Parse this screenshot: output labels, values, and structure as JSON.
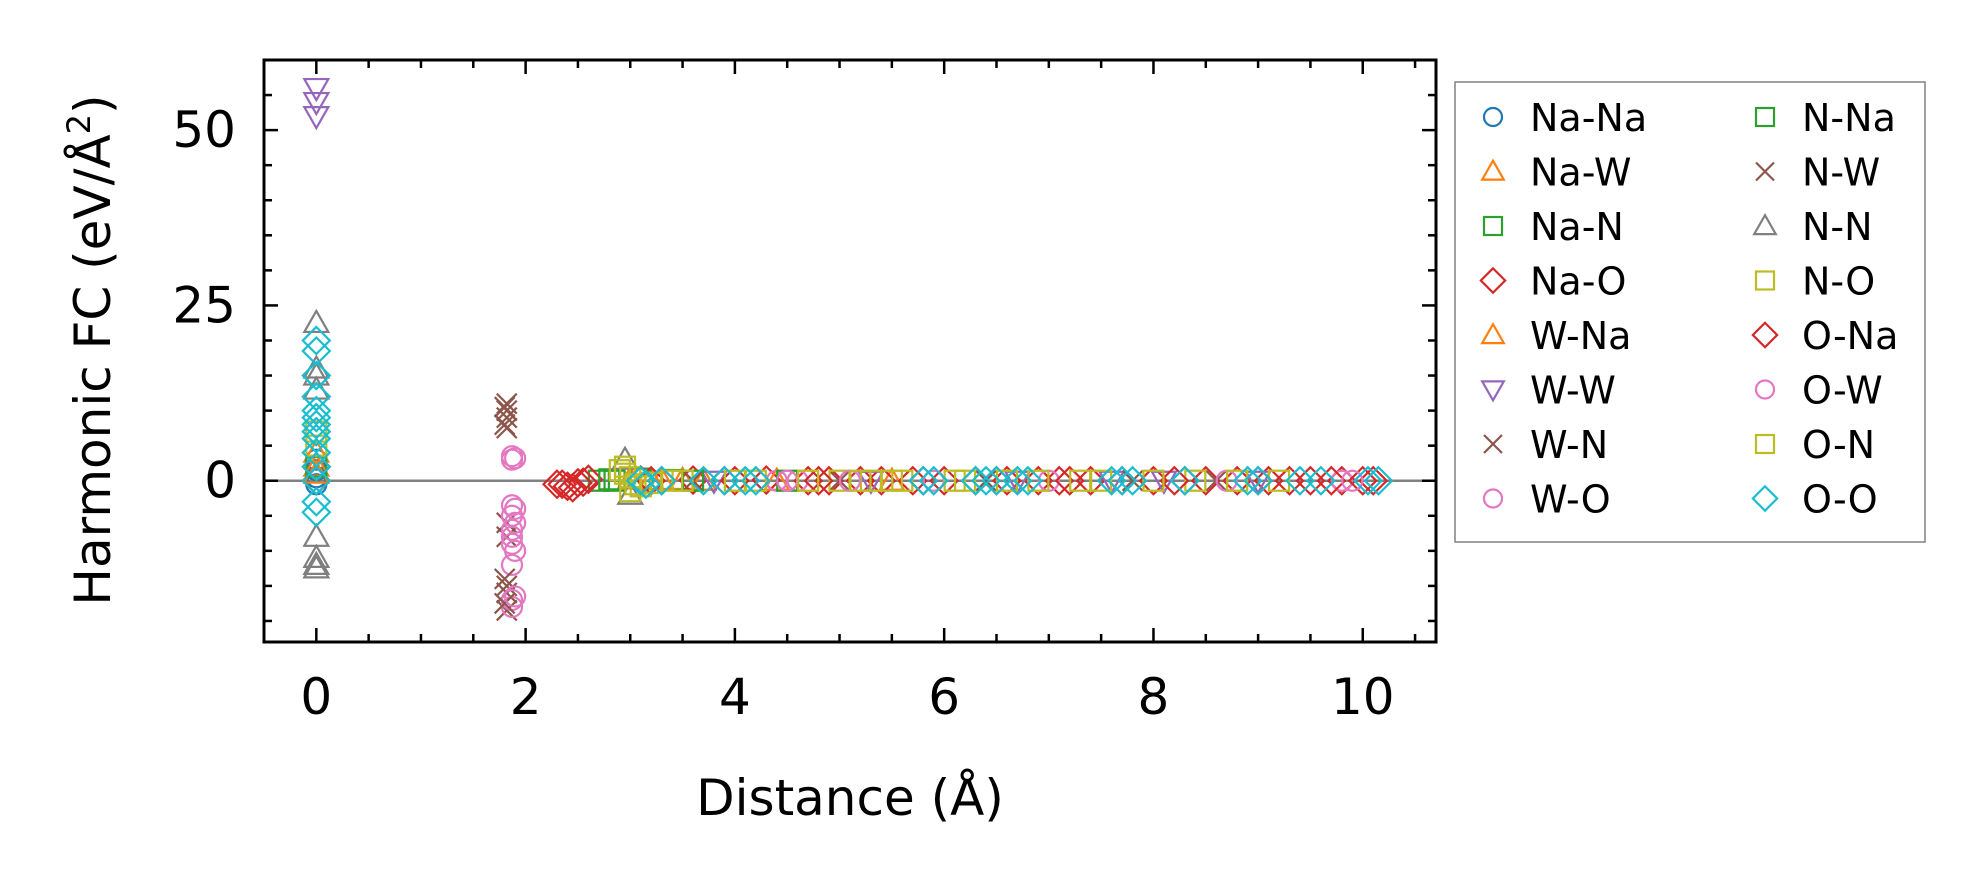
{
  "chart_data": {
    "type": "scatter",
    "title": "",
    "xlabel": "Distance (Å)",
    "ylabel_main": "Harmonic FC (eV/Å",
    "ylabel_sup": "2",
    "ylabel_close": ")",
    "xlim": [
      -0.5,
      10.7
    ],
    "ylim": [
      -23,
      60
    ],
    "x_ticks": [
      0,
      2,
      4,
      6,
      8,
      10
    ],
    "x_tick_labels": [
      "0",
      "2",
      "4",
      "6",
      "8",
      "10"
    ],
    "y_ticks": [
      0,
      25,
      50
    ],
    "y_tick_labels": [
      "0",
      "25",
      "50"
    ],
    "zero_line": 0,
    "legend_position": "right, outside the axes, two columns",
    "series": [
      {
        "name": "Na-Na",
        "color": "#1f77b4",
        "marker": "circle",
        "points": [
          [
            0,
            0.5
          ],
          [
            0,
            1.5
          ],
          [
            0,
            3
          ],
          [
            0,
            -0.5
          ]
        ]
      },
      {
        "name": "Na-W",
        "color": "#ff7f0e",
        "marker": "triangle-up",
        "points": [
          [
            0,
            1
          ],
          [
            0,
            2
          ],
          [
            0,
            4
          ],
          [
            3.2,
            0.1
          ],
          [
            3.5,
            0.1
          ],
          [
            5.5,
            0
          ]
        ]
      },
      {
        "name": "Na-N",
        "color": "#2ca02c",
        "marker": "square",
        "points": [
          [
            0,
            2
          ],
          [
            2.7,
            0
          ],
          [
            2.85,
            0
          ],
          [
            3.1,
            0.3
          ],
          [
            3.4,
            0.1
          ]
        ]
      },
      {
        "name": "Na-O",
        "color": "#d62728",
        "marker": "diamond",
        "points": [
          [
            0,
            0
          ],
          [
            0,
            2
          ],
          [
            2.3,
            -0.5
          ],
          [
            2.4,
            -0.8
          ],
          [
            2.5,
            -0.3
          ],
          [
            2.6,
            0.2
          ],
          [
            3.1,
            0.1
          ],
          [
            3.3,
            0
          ],
          [
            3.6,
            0.1
          ],
          [
            3.9,
            0
          ],
          [
            4.3,
            0.1
          ],
          [
            4.7,
            0
          ],
          [
            4.9,
            0
          ],
          [
            5.2,
            0
          ],
          [
            5.4,
            0
          ],
          [
            5.7,
            0
          ],
          [
            6.0,
            0
          ],
          [
            6.3,
            0
          ],
          [
            6.6,
            0
          ],
          [
            6.9,
            0
          ],
          [
            7.1,
            0
          ],
          [
            7.4,
            0
          ],
          [
            7.7,
            0
          ],
          [
            8.0,
            0
          ],
          [
            8.3,
            0
          ],
          [
            8.5,
            0
          ],
          [
            8.8,
            0
          ],
          [
            9.1,
            0
          ],
          [
            9.3,
            0
          ],
          [
            9.5,
            0
          ],
          [
            9.8,
            0
          ],
          [
            10.1,
            0
          ]
        ]
      },
      {
        "name": "W-Na",
        "color": "#ff7f0e",
        "marker": "triangle-up",
        "points": [
          [
            3.0,
            0.2
          ],
          [
            3.3,
            0.1
          ],
          [
            3.7,
            0
          ],
          [
            4.4,
            0
          ]
        ]
      },
      {
        "name": "W-W",
        "color": "#9467bd",
        "marker": "triangle-down",
        "points": [
          [
            0,
            56
          ],
          [
            0,
            54
          ],
          [
            0,
            52
          ],
          [
            3.8,
            0
          ],
          [
            5.3,
            0
          ],
          [
            6.7,
            0
          ],
          [
            7.6,
            0
          ],
          [
            8.1,
            0
          ],
          [
            9.0,
            0
          ]
        ]
      },
      {
        "name": "W-N",
        "color": "#8c564b",
        "marker": "x",
        "points": [
          [
            1.82,
            11
          ],
          [
            1.82,
            10
          ],
          [
            1.82,
            9
          ],
          [
            1.82,
            7.5
          ],
          [
            1.82,
            -6
          ],
          [
            1.82,
            -8
          ],
          [
            1.82,
            -15
          ],
          [
            1.82,
            -16
          ],
          [
            1.82,
            -18.5
          ],
          [
            3.6,
            0
          ],
          [
            5.0,
            0
          ],
          [
            6.4,
            0
          ],
          [
            7.8,
            0
          ],
          [
            8.6,
            0
          ]
        ]
      },
      {
        "name": "W-O",
        "color": "#e377c2",
        "marker": "circle",
        "points": [
          [
            1.87,
            3.5
          ],
          [
            1.87,
            3
          ],
          [
            1.87,
            -3.5
          ],
          [
            1.87,
            -5
          ],
          [
            1.87,
            -7
          ],
          [
            1.87,
            -8
          ],
          [
            1.87,
            -9
          ],
          [
            1.87,
            -12
          ],
          [
            1.87,
            -17
          ],
          [
            1.87,
            -18
          ],
          [
            4.4,
            0
          ],
          [
            4.6,
            0
          ],
          [
            5.9,
            0
          ],
          [
            7.0,
            0
          ],
          [
            8.7,
            0
          ],
          [
            9.8,
            0
          ]
        ]
      },
      {
        "name": "N-Na",
        "color": "#2ca02c",
        "marker": "square",
        "points": [
          [
            2.8,
            0.2
          ],
          [
            3.6,
            0
          ],
          [
            4.5,
            0
          ]
        ]
      },
      {
        "name": "N-W",
        "color": "#8c564b",
        "marker": "x",
        "points": [
          [
            1.8,
            10.5
          ],
          [
            1.8,
            8
          ],
          [
            1.8,
            -14
          ],
          [
            1.8,
            -17.5
          ]
        ]
      },
      {
        "name": "N-N",
        "color": "#7f7f7f",
        "marker": "triangle-up",
        "points": [
          [
            0,
            22.5
          ],
          [
            0,
            16
          ],
          [
            0,
            15
          ],
          [
            0,
            13
          ],
          [
            0,
            -8
          ],
          [
            0,
            -11
          ],
          [
            0,
            -12
          ],
          [
            0,
            -12.5
          ],
          [
            2.95,
            3
          ],
          [
            3.0,
            -2
          ]
        ]
      },
      {
        "name": "N-O",
        "color": "#bcbd22",
        "marker": "square",
        "points": [
          [
            0,
            5
          ],
          [
            0,
            7
          ],
          [
            2.95,
            2
          ],
          [
            2.95,
            1
          ],
          [
            3.0,
            -1.5
          ],
          [
            3.05,
            -0.5
          ],
          [
            3.5,
            0
          ],
          [
            4.2,
            0
          ],
          [
            5.0,
            0
          ],
          [
            5.3,
            0
          ],
          [
            5.6,
            0
          ],
          [
            6.2,
            0
          ],
          [
            6.9,
            0
          ],
          [
            7.5,
            0
          ],
          [
            8.4,
            0
          ],
          [
            9.2,
            0
          ]
        ]
      },
      {
        "name": "O-Na",
        "color": "#d62728",
        "marker": "diamond",
        "points": [
          [
            2.35,
            -0.5
          ],
          [
            2.45,
            -1
          ],
          [
            2.55,
            -0.2
          ],
          [
            3.2,
            0
          ],
          [
            4.0,
            0
          ],
          [
            4.8,
            0
          ],
          [
            5.8,
            0
          ],
          [
            6.5,
            0
          ],
          [
            7.2,
            0
          ],
          [
            8.2,
            0
          ],
          [
            9.0,
            0
          ],
          [
            9.7,
            0
          ],
          [
            10.0,
            0
          ]
        ]
      },
      {
        "name": "O-W",
        "color": "#e377c2",
        "marker": "circle",
        "points": [
          [
            1.9,
            3.2
          ],
          [
            1.9,
            -4
          ],
          [
            1.9,
            -6
          ],
          [
            1.9,
            -10
          ],
          [
            1.9,
            -16.5
          ],
          [
            4.5,
            0
          ],
          [
            5.1,
            0
          ],
          [
            9.9,
            0
          ]
        ]
      },
      {
        "name": "O-N",
        "color": "#bcbd22",
        "marker": "square",
        "points": [
          [
            2.9,
            1.5
          ],
          [
            3.0,
            0.5
          ],
          [
            3.1,
            -0.8
          ],
          [
            3.2,
            -0.3
          ],
          [
            3.4,
            0
          ],
          [
            4.0,
            0
          ],
          [
            4.7,
            0
          ],
          [
            5.2,
            0
          ],
          [
            5.5,
            0
          ],
          [
            6.1,
            0
          ],
          [
            6.6,
            0
          ],
          [
            7.3,
            0
          ],
          [
            8.0,
            0
          ],
          [
            8.8,
            0
          ]
        ]
      },
      {
        "name": "O-O",
        "color": "#17becf",
        "marker": "diamond",
        "points": [
          [
            0,
            20
          ],
          [
            0,
            18.5
          ],
          [
            0,
            15
          ],
          [
            0,
            12
          ],
          [
            0,
            10
          ],
          [
            0,
            9
          ],
          [
            0,
            8
          ],
          [
            0,
            7
          ],
          [
            0,
            6
          ],
          [
            0,
            4
          ],
          [
            0,
            2
          ],
          [
            0,
            0
          ],
          [
            0,
            -3
          ],
          [
            0,
            -4.5
          ],
          [
            3.1,
            0
          ],
          [
            3.15,
            -0.5
          ],
          [
            3.3,
            0
          ],
          [
            3.7,
            0
          ],
          [
            3.9,
            0
          ],
          [
            4.1,
            0
          ],
          [
            4.2,
            0
          ],
          [
            5.8,
            0
          ],
          [
            5.9,
            0
          ],
          [
            6.3,
            0
          ],
          [
            6.4,
            0
          ],
          [
            6.5,
            0
          ],
          [
            6.7,
            0
          ],
          [
            6.8,
            0
          ],
          [
            7.6,
            0
          ],
          [
            7.7,
            0
          ],
          [
            7.8,
            0
          ],
          [
            8.3,
            0
          ],
          [
            8.9,
            0
          ],
          [
            9.0,
            0
          ],
          [
            9.4,
            0
          ],
          [
            9.6,
            0
          ],
          [
            10.05,
            0
          ],
          [
            10.15,
            0
          ]
        ]
      }
    ]
  }
}
